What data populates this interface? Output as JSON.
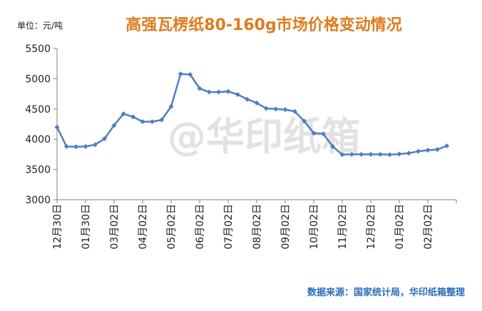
{
  "unit_label": "单位：元/吨",
  "watermark": "@华印纸箱",
  "source": "数据来源：国家统计局，华印纸箱整理",
  "colors": {
    "line": "#4f7fc0",
    "title": "#e07b1f",
    "source": "#2a6ebb",
    "axis": "#7f7f7f"
  },
  "chart_data": {
    "type": "line",
    "title": "高强瓦楞纸80-160g市场价格变动情况",
    "xlabel": "",
    "ylabel": "",
    "ylim": [
      3000,
      5500
    ],
    "yticks": [
      3000,
      3500,
      4000,
      4500,
      5000,
      5500
    ],
    "grid": false,
    "legend": "none",
    "x_tick_labels": [
      "12月30日",
      "01月30日",
      "03月02日",
      "04月02日",
      "05月02日",
      "06月02日",
      "07月02日",
      "08月02日",
      "09月02日",
      "10月02日",
      "11月02日",
      "12月02日",
      "01月02日",
      "02月02日"
    ],
    "series": [
      {
        "values": [
          4200,
          3880,
          3875,
          3880,
          3910,
          4010,
          4230,
          4420,
          4370,
          4290,
          4290,
          4320,
          4540,
          5080,
          5070,
          4840,
          4780,
          4780,
          4790,
          4740,
          4660,
          4600,
          4510,
          4500,
          4490,
          4460,
          4300,
          4100,
          4090,
          3880,
          3745,
          3750,
          3750,
          3750,
          3750,
          3745,
          3755,
          3770,
          3800,
          3820,
          3830,
          3890
        ]
      }
    ]
  }
}
